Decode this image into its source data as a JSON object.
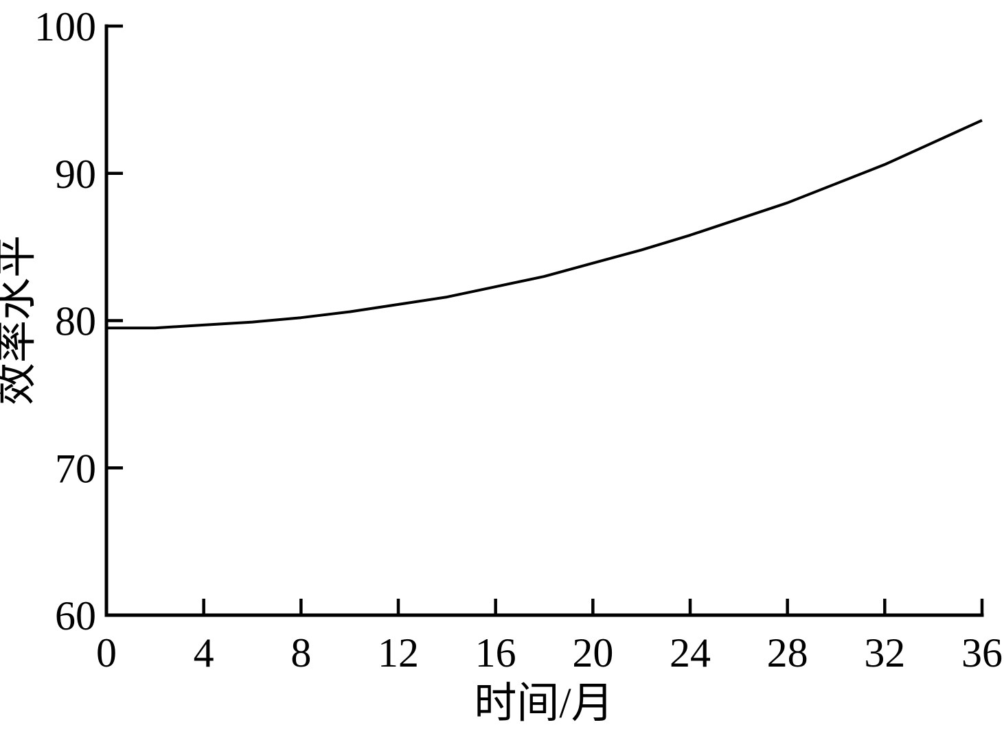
{
  "figure": {
    "background_color": "#ffffff",
    "foreground_color": "#000000"
  },
  "chart_data": {
    "type": "line",
    "title": "",
    "xlabel": "时间/月",
    "ylabel": "效率水平",
    "xlim": [
      0,
      36
    ],
    "ylim": [
      60,
      100
    ],
    "x_ticks": [
      0,
      4,
      8,
      12,
      16,
      20,
      24,
      28,
      32,
      36
    ],
    "y_ticks": [
      60,
      70,
      80,
      90,
      100
    ],
    "grid": false,
    "legend_position": "none",
    "tick_direction": "in",
    "axis_color": "#000000",
    "series": [
      {
        "name": "效率水平",
        "color": "#000000",
        "line_width": 4,
        "x": [
          0,
          2,
          4,
          6,
          8,
          10,
          12,
          14,
          16,
          18,
          20,
          22,
          24,
          26,
          28,
          30,
          32,
          34,
          36
        ],
        "y": [
          79.5,
          79.5,
          79.7,
          79.9,
          80.2,
          80.6,
          81.1,
          81.6,
          82.3,
          83.0,
          83.9,
          84.8,
          85.8,
          86.9,
          88.0,
          89.3,
          90.6,
          92.1,
          93.6
        ]
      }
    ]
  }
}
